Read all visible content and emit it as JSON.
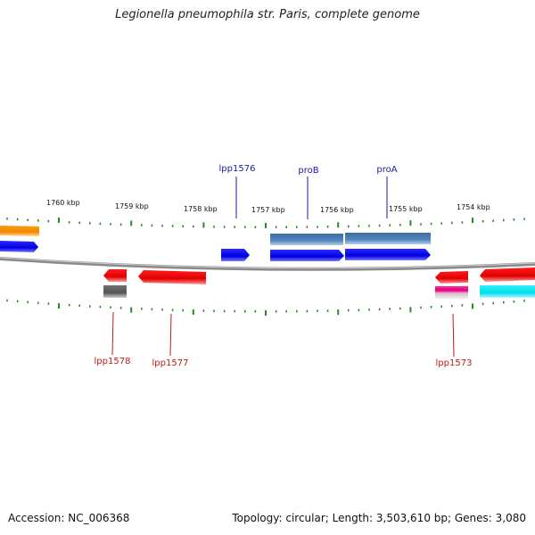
{
  "title": "Legionella pneumophila str. Paris, complete genome",
  "footer": {
    "accession": "Accession: NC_006368",
    "stats": "Topology: circular; Length: 3,503,610 bp; Genes: 3,080"
  },
  "colors": {
    "forward_label": "#1a1aa0",
    "reverse_label": "#c01818",
    "tick": "#2a8a2a",
    "backbone": "#8a8a8a"
  },
  "kbp_labels": [
    "1760 kbp",
    "1759 kbp",
    "1758 kbp",
    "1757 kbp",
    "1756 kbp",
    "1755 kbp",
    "1754 kbp"
  ],
  "gene_labels": {
    "lpp1576": "lpp1576",
    "proB": "proB",
    "proA": "proA",
    "lpp1578": "lpp1578",
    "lpp1577": "lpp1577",
    "lpp1573": "lpp1573"
  }
}
